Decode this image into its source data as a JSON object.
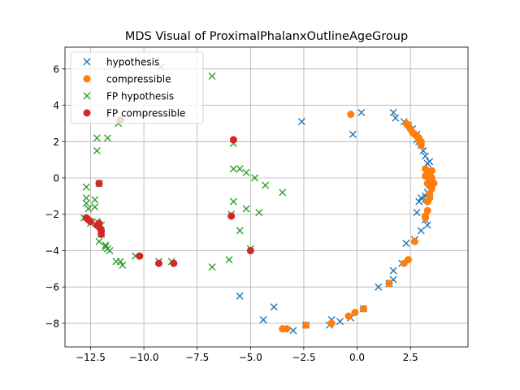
{
  "chart_data": {
    "type": "scatter",
    "title": "MDS Visual of ProximalPhalanxOutlineAgeGroup",
    "xlabel": "",
    "ylabel": "",
    "xlim": [
      -13.7,
      5.2
    ],
    "ylim": [
      -9.3,
      7.2
    ],
    "xticks": [
      -12.5,
      -10.0,
      -7.5,
      -5.0,
      -2.5,
      0.0,
      2.5
    ],
    "xtick_labels": [
      "−12.5",
      "−10.0",
      "−7.5",
      "−5.0",
      "−2.5",
      "0.0",
      "2.5"
    ],
    "yticks": [
      -8,
      -6,
      -4,
      -2,
      0,
      2,
      4,
      6
    ],
    "ytick_labels": [
      "−8",
      "−6",
      "−4",
      "−2",
      "0",
      "2",
      "4",
      "6"
    ],
    "grid": true,
    "legend_position": "top-left",
    "series": [
      {
        "name": "hypothesis",
        "marker": "x",
        "color": "#1f77b4",
        "points": [
          [
            1.7,
            3.6
          ],
          [
            1.8,
            3.3
          ],
          [
            0.2,
            3.6
          ],
          [
            -0.2,
            2.4
          ],
          [
            -2.6,
            3.1
          ],
          [
            2.2,
            3.1
          ],
          [
            2.4,
            2.9
          ],
          [
            2.6,
            2.7
          ],
          [
            2.8,
            2.4
          ],
          [
            2.9,
            2.0
          ],
          [
            3.0,
            1.8
          ],
          [
            3.1,
            1.5
          ],
          [
            3.2,
            1.2
          ],
          [
            3.3,
            0.8
          ],
          [
            3.3,
            0.4
          ],
          [
            3.4,
            0.0
          ],
          [
            3.4,
            -0.4
          ],
          [
            3.3,
            -0.8
          ],
          [
            3.2,
            -1.2
          ],
          [
            3.0,
            -1.1
          ],
          [
            2.9,
            -1.3
          ],
          [
            2.8,
            -1.9
          ],
          [
            3.2,
            -2.3
          ],
          [
            3.3,
            -2.6
          ],
          [
            3.0,
            -2.9
          ],
          [
            2.7,
            -3.4
          ],
          [
            2.3,
            -3.6
          ],
          [
            2.1,
            -4.7
          ],
          [
            1.7,
            -5.1
          ],
          [
            1.7,
            -5.6
          ],
          [
            1.5,
            -5.8
          ],
          [
            1.0,
            -6.0
          ],
          [
            0.3,
            -7.2
          ],
          [
            -0.3,
            -7.7
          ],
          [
            -0.8,
            -7.9
          ],
          [
            -1.2,
            -7.8
          ],
          [
            -1.3,
            -8.1
          ],
          [
            -2.4,
            -8.1
          ],
          [
            -3.0,
            -8.4
          ],
          [
            -3.4,
            -8.3
          ],
          [
            -3.9,
            -7.1
          ],
          [
            -4.4,
            -7.8
          ],
          [
            -5.5,
            -6.5
          ],
          [
            3.2,
            -1.0
          ],
          [
            3.4,
            0.9
          ],
          [
            2.8,
            2.1
          ]
        ]
      },
      {
        "name": "compressible",
        "marker": "o",
        "color": "#ff7f0e",
        "points": [
          [
            -0.3,
            3.5
          ],
          [
            2.3,
            3.0
          ],
          [
            2.4,
            2.9
          ],
          [
            2.5,
            2.7
          ],
          [
            2.6,
            2.5
          ],
          [
            2.7,
            2.4
          ],
          [
            2.8,
            2.3
          ],
          [
            2.9,
            2.2
          ],
          [
            3.0,
            2.0
          ],
          [
            3.0,
            1.8
          ],
          [
            3.2,
            0.5
          ],
          [
            3.3,
            0.3
          ],
          [
            3.4,
            0.2
          ],
          [
            3.5,
            0.0
          ],
          [
            3.5,
            -0.2
          ],
          [
            3.4,
            -0.4
          ],
          [
            3.3,
            -0.3
          ],
          [
            3.5,
            -0.6
          ],
          [
            3.4,
            -0.9
          ],
          [
            3.4,
            -1.1
          ],
          [
            3.3,
            -1.3
          ],
          [
            3.3,
            -1.8
          ],
          [
            3.2,
            -2.1
          ],
          [
            3.2,
            -2.2
          ],
          [
            2.7,
            -3.5
          ],
          [
            2.4,
            -4.5
          ],
          [
            2.2,
            -4.7
          ],
          [
            1.5,
            -5.8
          ],
          [
            0.3,
            -7.2
          ],
          [
            -0.1,
            -7.4
          ],
          [
            -0.4,
            -7.6
          ],
          [
            -1.2,
            -8.0
          ],
          [
            -2.4,
            -8.1
          ],
          [
            -3.3,
            -8.3
          ],
          [
            -3.5,
            -8.3
          ],
          [
            3.5,
            0.4
          ],
          [
            3.4,
            0.0
          ],
          [
            3.6,
            -0.3
          ],
          [
            3.2,
            0.1
          ],
          [
            2.9,
            2.1
          ],
          [
            3.0,
            1.9
          ],
          [
            3.5,
            -0.1
          ]
        ]
      },
      {
        "name": "FP hypothesis",
        "marker": "x",
        "color": "#2ca02c",
        "points": [
          [
            -6.8,
            5.6
          ],
          [
            -9.2,
            6.1
          ],
          [
            -11.2,
            3.0
          ],
          [
            -11.7,
            2.2
          ],
          [
            -12.2,
            2.2
          ],
          [
            -12.2,
            1.5
          ],
          [
            -5.8,
            1.9
          ],
          [
            -5.8,
            0.5
          ],
          [
            -5.5,
            0.5
          ],
          [
            -5.2,
            0.3
          ],
          [
            -4.8,
            0.0
          ],
          [
            -4.3,
            -0.4
          ],
          [
            -3.5,
            -0.8
          ],
          [
            -5.8,
            -1.3
          ],
          [
            -5.2,
            -1.7
          ],
          [
            -4.6,
            -1.9
          ],
          [
            -5.9,
            -2.0
          ],
          [
            -5.5,
            -2.9
          ],
          [
            -5.0,
            -3.9
          ],
          [
            -6.0,
            -4.5
          ],
          [
            -6.8,
            -4.9
          ],
          [
            -12.7,
            -0.5
          ],
          [
            -12.7,
            -1.1
          ],
          [
            -12.7,
            -1.4
          ],
          [
            -12.6,
            -1.7
          ],
          [
            -12.3,
            -1.2
          ],
          [
            -12.3,
            -1.6
          ],
          [
            -12.1,
            -0.3
          ],
          [
            -12.8,
            -2.2
          ],
          [
            -12.5,
            -2.5
          ],
          [
            -12.2,
            -2.4
          ],
          [
            -12.0,
            -2.6
          ],
          [
            -12.0,
            -3.1
          ],
          [
            -12.1,
            -3.5
          ],
          [
            -11.8,
            -3.7
          ],
          [
            -11.7,
            -3.9
          ],
          [
            -11.6,
            -4.0
          ],
          [
            -11.3,
            -4.6
          ],
          [
            -11.1,
            -4.6
          ],
          [
            -11.0,
            -4.8
          ],
          [
            -10.4,
            -4.3
          ],
          [
            -9.3,
            -4.6
          ],
          [
            -8.7,
            -4.6
          ],
          [
            -11.8,
            -3.8
          ]
        ]
      },
      {
        "name": "FP compressible",
        "marker": "o",
        "color": "#d62728",
        "points": [
          [
            -11.1,
            3.2
          ],
          [
            -5.8,
            2.1
          ],
          [
            -12.1,
            -0.3
          ],
          [
            -12.7,
            -2.2
          ],
          [
            -12.6,
            -2.3
          ],
          [
            -12.5,
            -2.4
          ],
          [
            -12.2,
            -2.6
          ],
          [
            -12.1,
            -2.7
          ],
          [
            -12.0,
            -2.9
          ],
          [
            -12.0,
            -3.1
          ],
          [
            -5.9,
            -2.1
          ],
          [
            -5.0,
            -4.0
          ],
          [
            -10.2,
            -4.3
          ],
          [
            -9.3,
            -4.7
          ],
          [
            -8.6,
            -4.7
          ],
          [
            -12.1,
            -2.5
          ]
        ]
      }
    ]
  }
}
